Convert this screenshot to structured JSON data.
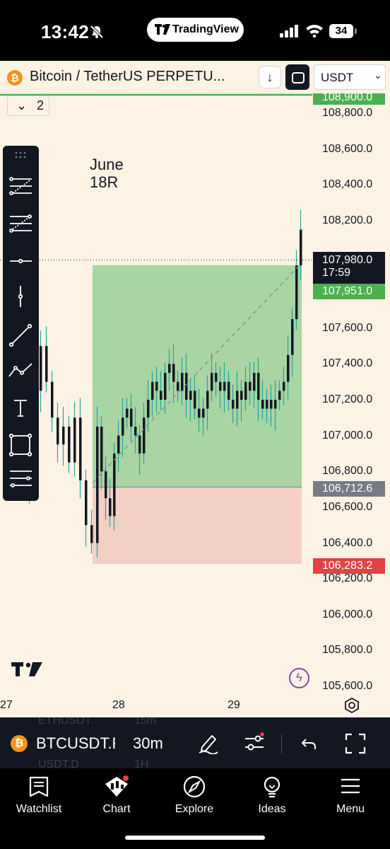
{
  "status_bar": {
    "time": "13:42",
    "app_pill": "TradingView",
    "battery": "34"
  },
  "header": {
    "symbol_title": "Bitcoin / TetherUS PERPETU...",
    "currency": "USDT",
    "indicators_count": "2"
  },
  "chart": {
    "annotation_lines": [
      "June",
      "18R"
    ],
    "price_axis_labels": [
      "108,900.0",
      "108,800.0",
      "108,600.0",
      "108,400.0",
      "108,200.0",
      "107,600.0",
      "107,400.0",
      "107,200.0",
      "107,000.0",
      "106,800.0",
      "106,600.0",
      "106,400.0",
      "106,200.0",
      "106,000.0",
      "105,800.0",
      "105,600.0"
    ],
    "time_labels": [
      "27",
      "28",
      "29"
    ],
    "last_price": {
      "value": "107,980.0",
      "countdown": "17:59",
      "color": "#131722"
    },
    "position": {
      "target_price": "107,951.0",
      "entry_price": "106,712.6",
      "stop_price": "106,283.2",
      "target_color": "#4caf50",
      "entry_color": "#787b86",
      "stop_color": "#e04444",
      "profit_zone_color": "#a8d5a2",
      "loss_zone_color": "#f4cfc4"
    },
    "top_line_color": "#4caf50",
    "candle_color": "#131722",
    "wick_color": "#26a69a"
  },
  "drawing_tools": [
    "fib-retracement-icon",
    "fib-extension-icon",
    "horizontal-line-icon",
    "vertical-line-icon",
    "trend-line-icon",
    "path-icon",
    "text-tool-icon",
    "rectangle-icon",
    "parallel-channel-icon"
  ],
  "symbol_toolbar": {
    "symbol": "BTCUSDT.P",
    "interval": "30m",
    "ghost_items": [
      "ETHUSDT.",
      "15m",
      "USDT.D",
      "1H"
    ]
  },
  "tabbar": {
    "tabs": [
      {
        "label": "Watchlist",
        "icon": "watchlist-icon"
      },
      {
        "label": "Chart",
        "icon": "chart-icon"
      },
      {
        "label": "Explore",
        "icon": "compass-icon"
      },
      {
        "label": "Ideas",
        "icon": "lightbulb-icon"
      },
      {
        "label": "Menu",
        "icon": "menu-icon"
      }
    ]
  }
}
